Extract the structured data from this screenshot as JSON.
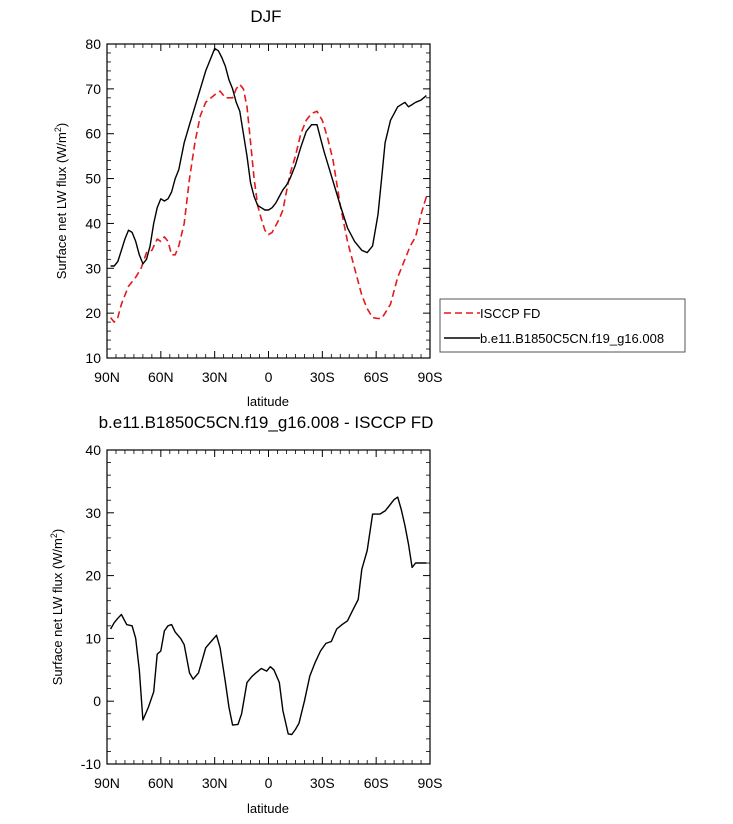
{
  "chart_data": [
    {
      "type": "line",
      "title": "DJF",
      "xlabel": "latitude",
      "ylabel": "Surface net LW flux (W/m²)",
      "ylabel_main": "Surface net LW flux (W/m",
      "ylabel_sup": "2",
      "ylabel_end": ")",
      "xlim": [
        -90,
        90
      ],
      "ylim": [
        10,
        80
      ],
      "xticks": [
        -90,
        -60,
        -30,
        0,
        30,
        60,
        90
      ],
      "xtick_labels": [
        "90N",
        "60N",
        "30N",
        "0",
        "30S",
        "60S",
        "90S"
      ],
      "yticks": [
        10,
        20,
        30,
        40,
        50,
        60,
        70,
        80
      ],
      "ytick_labels": [
        "10",
        "20",
        "30",
        "40",
        "50",
        "60",
        "70",
        "80"
      ],
      "grid": false,
      "legend_position": "right",
      "series": [
        {
          "name": "ISCCP FD",
          "color": "#e41a1c",
          "dash": "dashed",
          "x": [
            -88,
            -86,
            -84,
            -82,
            -78,
            -74,
            -71,
            -68,
            -65,
            -62,
            -60,
            -58,
            -56,
            -54,
            -52,
            -50,
            -47,
            -44,
            -41,
            -38,
            -35,
            -32,
            -29,
            -27,
            -24,
            -22,
            -20,
            -18,
            -16,
            -14,
            -12,
            -10,
            -8,
            -6,
            -4,
            -2,
            0,
            2,
            4,
            6,
            8,
            10,
            12,
            15,
            18,
            21,
            24,
            27,
            30,
            33,
            36,
            40,
            44,
            48,
            52,
            55,
            58,
            61,
            63,
            65,
            68,
            72,
            76,
            79,
            82,
            85,
            88
          ],
          "y": [
            19,
            18,
            19,
            22,
            26,
            28,
            30,
            33.5,
            34,
            36.5,
            36,
            37,
            36,
            33,
            33,
            35,
            40,
            50,
            58,
            64,
            67,
            68,
            69,
            69.5,
            68,
            68,
            68,
            70,
            71,
            70,
            66,
            58,
            50,
            44,
            41,
            38.5,
            37.5,
            38,
            39.5,
            41,
            43,
            47,
            51,
            55,
            60,
            63,
            64.5,
            65,
            63,
            59,
            54,
            44,
            36,
            30,
            24,
            21,
            19,
            18.8,
            18.8,
            20,
            22,
            28,
            32,
            35,
            37,
            42,
            46
          ]
        },
        {
          "name": "b.e11.B1850C5CN.f19_g16.008",
          "color": "#000000",
          "dash": "solid",
          "x": [
            -88,
            -86,
            -84,
            -82,
            -80,
            -78,
            -76,
            -74,
            -72,
            -70,
            -68,
            -66,
            -64,
            -62,
            -60,
            -58,
            -56,
            -54,
            -52,
            -50,
            -47,
            -44,
            -41,
            -38,
            -35,
            -32,
            -30,
            -28,
            -26,
            -24,
            -22,
            -20,
            -18,
            -16,
            -14,
            -12,
            -10,
            -8,
            -6,
            -4,
            -2,
            0,
            2,
            4,
            6,
            8,
            10,
            12,
            15,
            18,
            21,
            24,
            27,
            29,
            31,
            34,
            37,
            40,
            44,
            48,
            52,
            55,
            58,
            61,
            63,
            65,
            68,
            72,
            76,
            78,
            80,
            82,
            85,
            88
          ],
          "y": [
            30.5,
            30.5,
            31.5,
            34,
            36.5,
            38.5,
            38,
            36,
            33,
            31,
            32,
            35,
            40,
            43.5,
            45.5,
            45,
            45.5,
            47,
            50,
            52,
            58,
            62,
            66,
            70,
            74,
            77,
            79,
            78.5,
            77,
            75,
            72,
            70,
            67,
            65,
            60,
            55,
            49,
            46,
            44,
            43.5,
            43,
            43,
            43.5,
            44.5,
            46,
            47.5,
            48.5,
            50,
            53,
            57,
            60.5,
            62,
            62,
            59,
            56,
            52,
            48,
            44,
            39,
            36,
            34,
            33.5,
            35,
            42,
            50,
            58,
            63,
            66,
            67,
            66,
            66.5,
            67,
            67.5,
            68.5
          ]
        }
      ]
    },
    {
      "type": "line",
      "title": "b.e11.B1850C5CN.f19_g16.008 - ISCCP FD",
      "xlabel": "latitude",
      "ylabel": "Surface net LW flux (W/m²)",
      "ylabel_main": "Surface net LW flux (W/m",
      "ylabel_sup": "2",
      "ylabel_end": ")",
      "xlim": [
        -90,
        90
      ],
      "ylim": [
        -10,
        40
      ],
      "xticks": [
        -90,
        -60,
        -30,
        0,
        30,
        60,
        90
      ],
      "xtick_labels": [
        "90N",
        "60N",
        "30N",
        "0",
        "30S",
        "60S",
        "90S"
      ],
      "yticks": [
        -10,
        0,
        10,
        20,
        30,
        40
      ],
      "ytick_labels": [
        "-10",
        "0",
        "10",
        "20",
        "30",
        "40"
      ],
      "grid": false,
      "series": [
        {
          "color": "#000000",
          "dash": "solid",
          "x": [
            -88,
            -86,
            -84,
            -82,
            -79,
            -76,
            -74,
            -72,
            -70,
            -67,
            -64,
            -62,
            -60,
            -58,
            -56,
            -54,
            -52,
            -49,
            -47,
            -44,
            -42,
            -39,
            -37,
            -35,
            -32,
            -29,
            -27,
            -24,
            -22,
            -20,
            -17,
            -15,
            -12,
            -9,
            -7,
            -4,
            -1,
            1,
            3,
            6,
            8,
            11,
            13,
            15,
            17,
            20,
            23,
            26,
            29,
            32,
            35,
            38,
            41,
            44,
            47,
            50,
            52,
            55,
            58,
            62,
            65,
            67,
            70,
            72,
            74,
            76,
            78,
            80,
            82,
            84,
            86,
            88
          ],
          "y": [
            11.5,
            12.5,
            13.2,
            13.8,
            12.2,
            12,
            10,
            5,
            -3,
            -1,
            1.5,
            7.5,
            8,
            11.2,
            12,
            12.2,
            11,
            10,
            9,
            4.5,
            3.5,
            4.5,
            6.5,
            8.5,
            9.5,
            10.5,
            8.5,
            3,
            -1,
            -3.8,
            -3.7,
            -2,
            3,
            4,
            4.5,
            5.2,
            4.8,
            5.5,
            5,
            3,
            -1.5,
            -5.2,
            -5.3,
            -4.5,
            -3.5,
            0,
            4,
            6.2,
            8,
            9.2,
            9.5,
            11.5,
            12.2,
            12.8,
            14.5,
            16.2,
            21,
            24,
            29.8,
            29.8,
            30.3,
            31,
            32.1,
            32.5,
            30.5,
            28,
            25,
            21.3,
            22,
            22,
            22,
            22
          ]
        }
      ]
    }
  ]
}
